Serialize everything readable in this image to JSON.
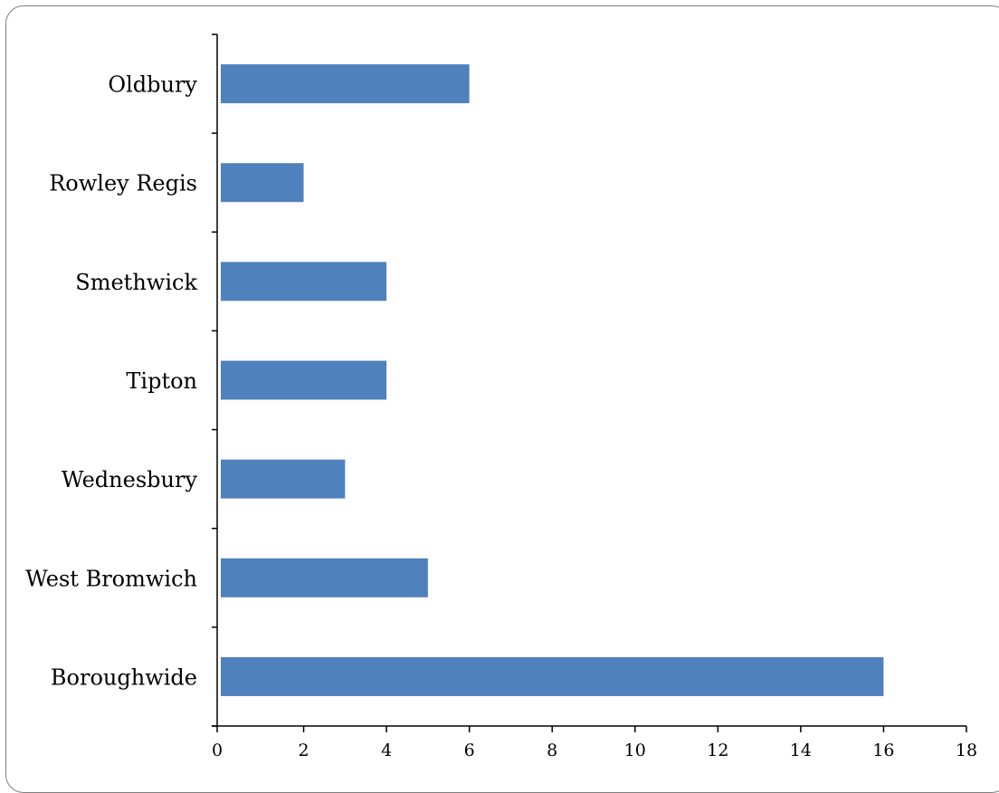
{
  "chart_data": {
    "type": "bar",
    "orientation": "horizontal",
    "categories": [
      "Oldbury",
      "Rowley Regis",
      "Smethwick",
      "Tipton",
      "Wednesbury",
      "West Bromwich",
      "Boroughwide"
    ],
    "values": [
      6,
      2,
      4,
      4,
      3,
      5,
      16
    ],
    "xlim": [
      0,
      18
    ],
    "xticks": [
      0,
      2,
      4,
      6,
      8,
      10,
      12,
      14,
      16,
      18
    ],
    "xtick_labels": [
      "0",
      "2",
      "4",
      "6",
      "8",
      "10",
      "12",
      "14",
      "16",
      "18"
    ],
    "bar_color": "#4f81bd",
    "grid": false,
    "legend": "none"
  }
}
